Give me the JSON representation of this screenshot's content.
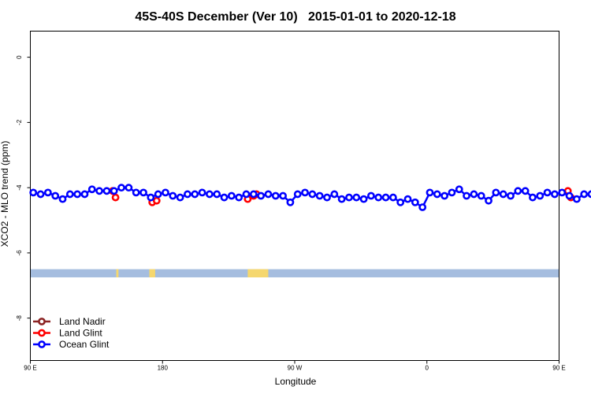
{
  "chart_data": {
    "type": "line",
    "title": "45S-40S December (Ver 10)   2015-01-01 to 2020-12-18",
    "xlabel": "Longitude",
    "ylabel": "XCO2 - MLO trend (ppm)",
    "xlim": [
      90,
      450
    ],
    "ylim": [
      -9.3,
      0.8
    ],
    "x_ticks": [
      {
        "value": 90,
        "label": "90 E"
      },
      {
        "value": 180,
        "label": "180"
      },
      {
        "value": 270,
        "label": "90 W"
      },
      {
        "value": 360,
        "label": "0"
      },
      {
        "value": 450,
        "label": "90 E"
      },
      {
        "value": 540,
        "label": "180"
      }
    ],
    "y_ticks": [
      {
        "value": 0,
        "label": "0"
      },
      {
        "value": -2,
        "label": "-2"
      },
      {
        "value": -4,
        "label": "-4"
      },
      {
        "value": -6,
        "label": "-6"
      },
      {
        "value": -8,
        "label": "-8"
      }
    ],
    "land_strip": {
      "y_top": -6.5,
      "y_bottom": -6.75,
      "ocean_color": "#a5bddf",
      "land_color": "#f5d76e",
      "land_ranges": [
        [
          148.5,
          150
        ],
        [
          171,
          175
        ],
        [
          243,
          249
        ],
        [
          238,
          252
        ],
        [
          459,
          461
        ],
        [
          476,
          480
        ]
      ]
    },
    "legend_position": "bottom-left",
    "series": [
      {
        "name": "Land Nadir",
        "color": "#8b2323",
        "x": [],
        "y": []
      },
      {
        "name": "Land Glint",
        "color": "#ff0000",
        "x": [
          146,
          148,
          173,
          176,
          238,
          242,
          244,
          456,
          458,
          486,
          489
        ],
        "y": [
          -4.1,
          -4.3,
          -4.45,
          -4.4,
          -4.35,
          -4.25,
          -4.2,
          -4.1,
          -4.3,
          -4.45,
          -4.4
        ]
      },
      {
        "name": "Ocean Glint",
        "color": "#0000ff",
        "x": [
          92,
          97,
          102,
          107,
          112,
          117,
          122,
          127,
          132,
          137,
          142,
          147,
          152,
          157,
          162,
          167,
          172,
          177,
          182,
          187,
          192,
          197,
          202,
          207,
          212,
          217,
          222,
          227,
          232,
          237,
          242,
          247,
          252,
          257,
          262,
          267,
          272,
          277,
          282,
          287,
          292,
          297,
          302,
          307,
          312,
          317,
          322,
          327,
          332,
          337,
          342,
          347,
          352,
          357,
          362,
          367,
          372,
          377,
          382,
          387,
          392,
          397,
          402,
          407,
          412,
          417,
          422,
          427,
          432,
          437,
          442,
          447,
          452,
          457,
          462,
          467,
          472,
          477,
          482,
          487,
          490
        ],
        "y": [
          -4.15,
          -4.2,
          -4.15,
          -4.25,
          -4.35,
          -4.2,
          -4.2,
          -4.2,
          -4.05,
          -4.1,
          -4.1,
          -4.1,
          -4.0,
          -4.0,
          -4.15,
          -4.15,
          -4.3,
          -4.2,
          -4.15,
          -4.25,
          -4.3,
          -4.2,
          -4.2,
          -4.15,
          -4.2,
          -4.2,
          -4.3,
          -4.25,
          -4.3,
          -4.2,
          -4.2,
          -4.25,
          -4.2,
          -4.25,
          -4.25,
          -4.45,
          -4.2,
          -4.15,
          -4.2,
          -4.25,
          -4.3,
          -4.2,
          -4.35,
          -4.3,
          -4.3,
          -4.35,
          -4.25,
          -4.3,
          -4.3,
          -4.3,
          -4.45,
          -4.35,
          -4.45,
          -4.6,
          -4.15,
          -4.2,
          -4.25,
          -4.15,
          -4.05,
          -4.25,
          -4.2,
          -4.25,
          -4.4,
          -4.15,
          -4.2,
          -4.25,
          -4.1,
          -4.1,
          -4.3,
          -4.25,
          -4.15,
          -4.2,
          -4.15,
          -4.25,
          -4.35,
          -4.2,
          -4.2,
          -4.2,
          -4.05,
          -4.1,
          -4.1
        ]
      }
    ]
  }
}
